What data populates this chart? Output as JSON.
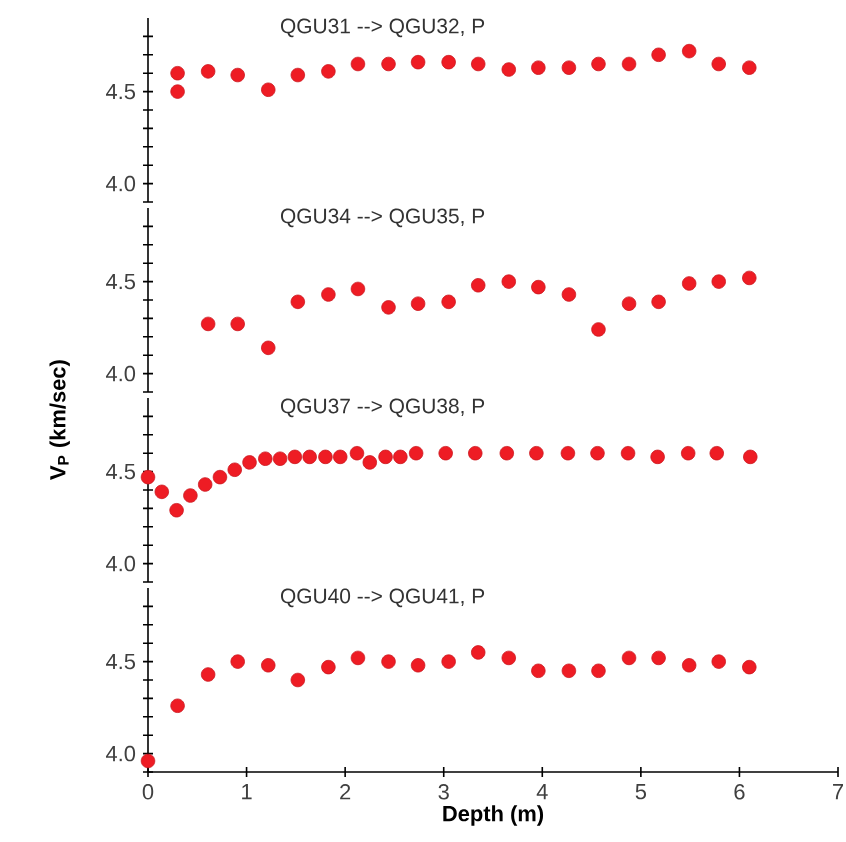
{
  "chart_data": [
    {
      "type": "scatter",
      "title": "QGU31 --> QGU32, P",
      "color": "#ee1c24",
      "marker": "circle",
      "tick_labels": "y",
      "xlim": [
        0,
        7
      ],
      "ylim": [
        3.9,
        4.9
      ],
      "yticks": [
        {
          "value": 3.9,
          "label": null
        },
        {
          "value": 4.0,
          "label": "4.0"
        },
        {
          "value": 4.1,
          "label": null
        },
        {
          "value": 4.2,
          "label": null
        },
        {
          "value": 4.3,
          "label": null
        },
        {
          "value": 4.4,
          "label": null
        },
        {
          "value": 4.5,
          "label": "4.5"
        },
        {
          "value": 4.6,
          "label": null
        },
        {
          "value": 4.7,
          "label": null
        },
        {
          "value": 4.8,
          "label": null
        }
      ],
      "x": [
        0.3,
        0.3,
        0.61,
        0.91,
        1.22,
        1.52,
        1.83,
        2.13,
        2.44,
        2.74,
        3.05,
        3.35,
        3.66,
        3.96,
        4.27,
        4.57,
        4.88,
        5.18,
        5.49,
        5.79,
        6.1
      ],
      "values": [
        4.6,
        4.5,
        4.61,
        4.59,
        4.51,
        4.59,
        4.61,
        4.65,
        4.65,
        4.66,
        4.66,
        4.65,
        4.62,
        4.63,
        4.63,
        4.65,
        4.65,
        4.7,
        4.72,
        4.65,
        4.63
      ]
    },
    {
      "type": "scatter",
      "title": "QGU34 --> QGU35, P",
      "ylabel": "V$_{P}$ (km/sec)",
      "color": "#ee1c24",
      "marker": "circle",
      "tick_labels": "y",
      "xlim": [
        0,
        7
      ],
      "ylim": [
        3.9,
        4.9
      ],
      "yticks": [
        {
          "value": 3.9,
          "label": null
        },
        {
          "value": 4.0,
          "label": "4.0"
        },
        {
          "value": 4.1,
          "label": null
        },
        {
          "value": 4.2,
          "label": null
        },
        {
          "value": 4.3,
          "label": null
        },
        {
          "value": 4.4,
          "label": null
        },
        {
          "value": 4.5,
          "label": "4.5"
        },
        {
          "value": 4.6,
          "label": null
        },
        {
          "value": 4.7,
          "label": null
        },
        {
          "value": 4.8,
          "label": null
        }
      ],
      "x": [
        0.61,
        0.91,
        1.22,
        1.52,
        1.83,
        2.13,
        2.44,
        2.74,
        3.05,
        3.35,
        3.66,
        3.96,
        4.27,
        4.57,
        4.88,
        5.18,
        5.49,
        5.79,
        6.1
      ],
      "values": [
        4.27,
        4.27,
        4.14,
        4.39,
        4.43,
        4.46,
        4.36,
        4.38,
        4.39,
        4.48,
        4.5,
        4.47,
        4.43,
        4.24,
        4.38,
        4.39,
        4.49,
        4.5,
        4.52
      ]
    },
    {
      "type": "scatter",
      "title": "QGU37 --> QGU38, P",
      "color": "#ee1c24",
      "marker": "circle",
      "tick_labels": "y",
      "xlim": [
        0,
        7
      ],
      "ylim": [
        3.9,
        4.9
      ],
      "yticks": [
        {
          "value": 3.9,
          "label": null
        },
        {
          "value": 4.0,
          "label": "4.0"
        },
        {
          "value": 4.1,
          "label": null
        },
        {
          "value": 4.2,
          "label": null
        },
        {
          "value": 4.3,
          "label": null
        },
        {
          "value": 4.4,
          "label": null
        },
        {
          "value": 4.5,
          "label": "4.5"
        },
        {
          "value": 4.6,
          "label": null
        },
        {
          "value": 4.7,
          "label": null
        },
        {
          "value": 4.8,
          "label": null
        }
      ],
      "x": [
        0,
        0.14,
        0.29,
        0.43,
        0.58,
        0.73,
        0.88,
        1.03,
        1.19,
        1.34,
        1.49,
        1.64,
        1.8,
        1.95,
        2.12,
        2.25,
        2.41,
        2.56,
        2.72,
        3.02,
        3.32,
        3.64,
        3.94,
        4.26,
        4.56,
        4.87,
        5.17,
        5.48,
        5.77,
        6.11
      ],
      "values": [
        4.47,
        4.39,
        4.29,
        4.37,
        4.43,
        4.47,
        4.51,
        4.55,
        4.57,
        4.57,
        4.58,
        4.58,
        4.58,
        4.58,
        4.6,
        4.55,
        4.58,
        4.58,
        4.6,
        4.6,
        4.6,
        4.6,
        4.6,
        4.6,
        4.6,
        4.6,
        4.58,
        4.6,
        4.6,
        4.58
      ]
    },
    {
      "type": "scatter",
      "title": "QGU40 --> QGU41, P",
      "xlabel": "Depth (m)",
      "color": "#ee1c24",
      "marker": "circle",
      "xlim": [
        0,
        7
      ],
      "ylim": [
        3.9,
        4.9
      ],
      "xticks": [
        0,
        1,
        2,
        3,
        4,
        5,
        6,
        7
      ],
      "yticks": [
        {
          "value": 3.9,
          "label": null
        },
        {
          "value": 4.0,
          "label": "4.0"
        },
        {
          "value": 4.1,
          "label": null
        },
        {
          "value": 4.2,
          "label": null
        },
        {
          "value": 4.3,
          "label": null
        },
        {
          "value": 4.4,
          "label": null
        },
        {
          "value": 4.5,
          "label": "4.5"
        },
        {
          "value": 4.6,
          "label": null
        },
        {
          "value": 4.7,
          "label": null
        },
        {
          "value": 4.8,
          "label": null
        }
      ],
      "x": [
        0,
        0.3,
        0.61,
        0.91,
        1.22,
        1.52,
        1.83,
        2.13,
        2.44,
        2.74,
        3.05,
        3.35,
        3.66,
        3.96,
        4.27,
        4.57,
        4.88,
        5.18,
        5.49,
        5.79,
        6.1
      ],
      "values": [
        3.96,
        4.26,
        4.43,
        4.5,
        4.48,
        4.4,
        4.47,
        4.52,
        4.5,
        4.48,
        4.5,
        4.55,
        4.52,
        4.45,
        4.45,
        4.45,
        4.52,
        4.52,
        4.48,
        4.5,
        4.47
      ]
    }
  ]
}
